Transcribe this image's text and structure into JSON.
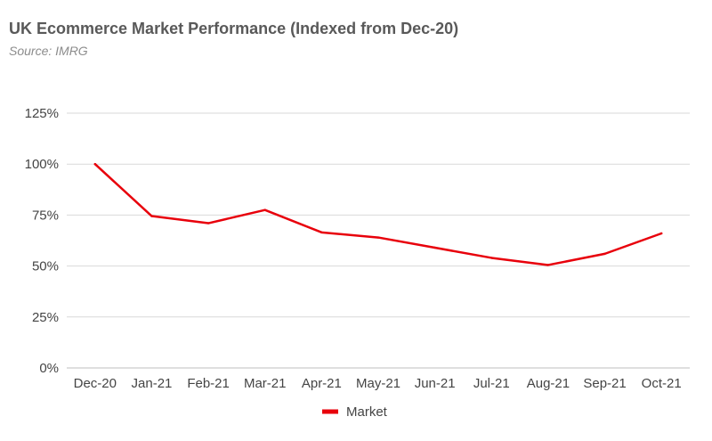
{
  "chart_data": {
    "type": "line",
    "title": "UK Ecommerce Market Performance (Indexed from Dec-20)",
    "subtitle": "Source: IMRG",
    "xlabel": "",
    "ylabel": "",
    "categories": [
      "Dec-20",
      "Jan-21",
      "Feb-21",
      "Mar-21",
      "Apr-21",
      "May-21",
      "Jun-21",
      "Jul-21",
      "Aug-21",
      "Sep-21",
      "Oct-21"
    ],
    "series": [
      {
        "name": "Market",
        "color": "#e8000b",
        "values": [
          100,
          74.5,
          71,
          77.5,
          66.5,
          64,
          59,
          54,
          50.5,
          56,
          66
        ]
      }
    ],
    "ylim": [
      0,
      125
    ],
    "yticks": [
      0,
      25,
      50,
      75,
      100,
      125
    ],
    "ytick_labels": [
      "0%",
      "25%",
      "50%",
      "75%",
      "100%",
      "125%"
    ],
    "grid": true,
    "legend_position": "bottom-center"
  }
}
